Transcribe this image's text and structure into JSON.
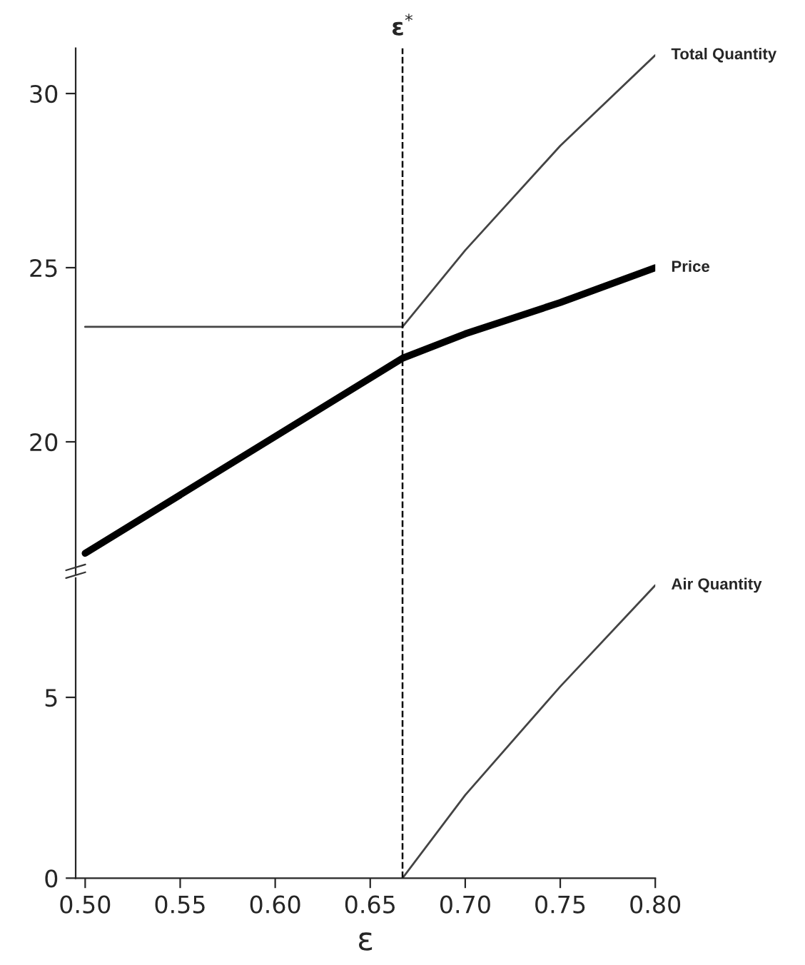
{
  "chart_data": [
    {
      "type": "line",
      "title": "ε$^{*}$",
      "xlim": [
        0.495,
        0.8
      ],
      "ylim": [
        16.2,
        31.3
      ],
      "yticks": [
        20,
        25,
        30
      ],
      "tick_labels": "y",
      "grid": false,
      "legend": false,
      "series": [
        {
          "name": "Total Quantity",
          "color": "#444444",
          "x": [
            0.5,
            0.667,
            0.7,
            0.75,
            0.8
          ],
          "values": [
            23.3,
            23.3,
            25.5,
            28.5,
            31.1
          ]
        },
        {
          "name": "Price",
          "color": "#000000",
          "x": [
            0.5,
            0.667,
            0.7,
            0.75,
            0.8
          ],
          "values": [
            16.8,
            22.4,
            23.1,
            24.0,
            25.0
          ]
        }
      ],
      "ref_lines": [
        {
          "axis": "x",
          "value": 0.667,
          "line_style": "dashed",
          "color": "#000000"
        }
      ]
    },
    {
      "type": "line",
      "xlabel": "ε",
      "xlim": [
        0.495,
        0.8
      ],
      "xticks": [
        {
          "value": 0.5,
          "label": "0.50"
        },
        {
          "value": 0.55,
          "label": "0.55"
        },
        {
          "value": 0.6,
          "label": "0.60"
        },
        {
          "value": 0.65,
          "label": "0.65"
        },
        {
          "value": 0.7,
          "label": "0.70"
        },
        {
          "value": 0.75,
          "label": "0.75"
        },
        {
          "value": 0.8,
          "label": "0.80"
        }
      ],
      "ylim": [
        0,
        8.3
      ],
      "yticks": [
        0,
        5
      ],
      "grid": false,
      "legend": false,
      "series": [
        {
          "name": "Air Quantity",
          "color": "#444444",
          "x": [
            0.667,
            0.7,
            0.75,
            0.8
          ],
          "values": [
            0,
            2.3,
            5.3,
            8.1
          ]
        }
      ],
      "ref_lines": [
        {
          "axis": "x",
          "value": 0.667,
          "line_style": "dashed",
          "color": "#000000"
        }
      ]
    }
  ]
}
